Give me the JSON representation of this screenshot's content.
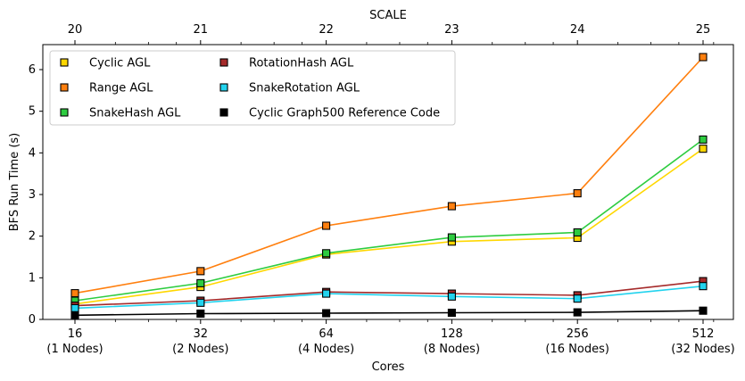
{
  "chart_data": {
    "type": "line",
    "xlabel": "Cores",
    "ylabel": "BFS Run Time (s)",
    "x_scale": "log2",
    "x": [
      16,
      32,
      64,
      128,
      256,
      512
    ],
    "x_tick_labels": [
      [
        "16",
        "(1 Nodes)"
      ],
      [
        "32",
        "(2 Nodes)"
      ],
      [
        "64",
        "(4 Nodes)"
      ],
      [
        "128",
        "(8 Nodes)"
      ],
      [
        "256",
        "(16 Nodes)"
      ],
      [
        "512",
        "(32 Nodes)"
      ]
    ],
    "top_axis": {
      "label": "SCALE",
      "ticks": [
        "20",
        "21",
        "22",
        "23",
        "24",
        "25"
      ]
    },
    "ylim": [
      0,
      6.6
    ],
    "y_ticks": [
      "0",
      "1",
      "2",
      "3",
      "4",
      "5",
      "6"
    ],
    "grid": false,
    "legend_position": "top-left",
    "series": [
      {
        "name": "Cyclic AGL",
        "color": "#FFD700",
        "values": [
          0.37,
          0.78,
          1.56,
          1.87,
          1.96,
          4.1
        ]
      },
      {
        "name": "Range AGL",
        "color": "#FF7F0E",
        "values": [
          0.63,
          1.16,
          2.25,
          2.72,
          3.03,
          6.3
        ]
      },
      {
        "name": "SnakeHash AGL",
        "color": "#2ECC40",
        "values": [
          0.45,
          0.87,
          1.59,
          1.97,
          2.09,
          4.32
        ]
      },
      {
        "name": "RotationHash AGL",
        "color": "#A52A2A",
        "values": [
          0.33,
          0.45,
          0.66,
          0.62,
          0.58,
          0.92
        ]
      },
      {
        "name": "SnakeRotation AGL",
        "color": "#22D3EE",
        "values": [
          0.27,
          0.4,
          0.62,
          0.55,
          0.5,
          0.8
        ]
      },
      {
        "name": "Cyclic Graph500 Reference Code",
        "color": "#000000",
        "values": [
          0.1,
          0.14,
          0.15,
          0.16,
          0.17,
          0.21
        ]
      }
    ]
  }
}
